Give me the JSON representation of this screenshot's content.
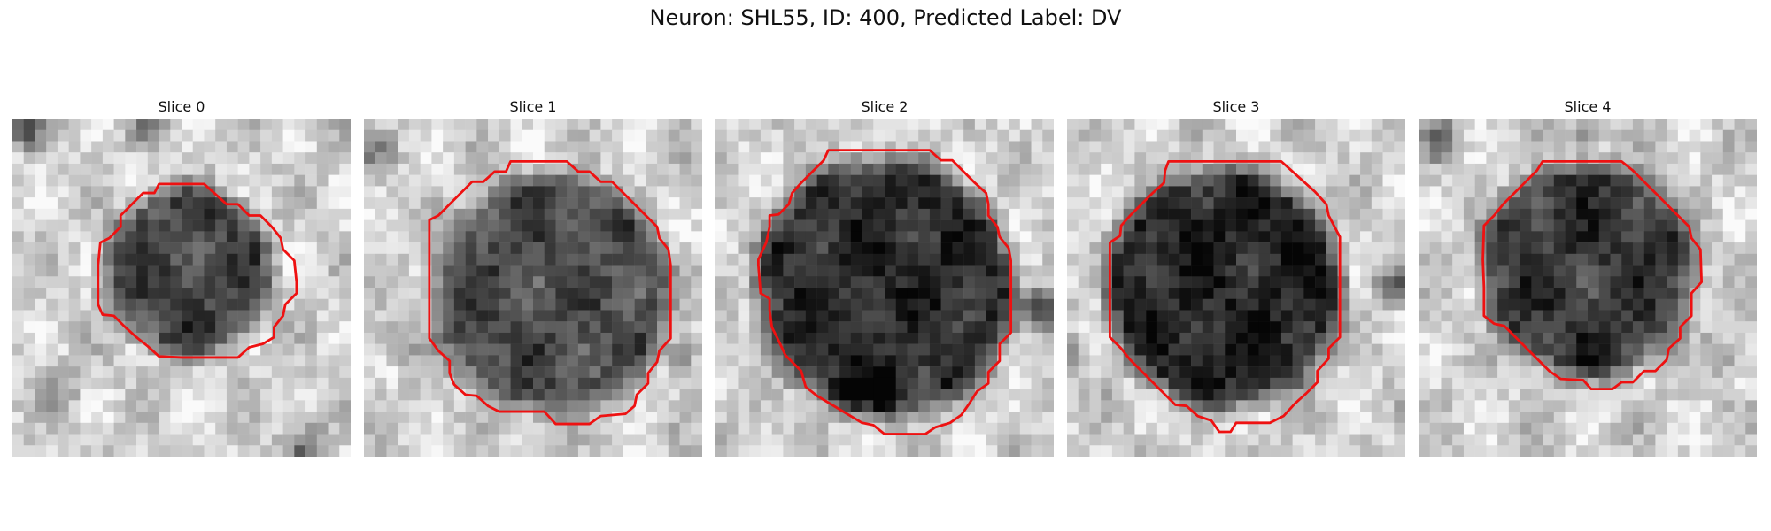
{
  "figure": {
    "title": "Neuron: SHL55, ID: 400, Predicted Label: DV"
  },
  "panels": [
    {
      "title": "Slice 0",
      "image": "grayscale-microscopy-slice",
      "outline": "red-roi-contour"
    },
    {
      "title": "Slice 1",
      "image": "grayscale-microscopy-slice",
      "outline": "red-roi-contour"
    },
    {
      "title": "Slice 2",
      "image": "grayscale-microscopy-slice",
      "outline": "red-roi-contour"
    },
    {
      "title": "Slice 3",
      "image": "grayscale-microscopy-slice",
      "outline": "red-roi-contour"
    },
    {
      "title": "Slice 4",
      "image": "grayscale-microscopy-slice",
      "outline": "red-roi-contour"
    }
  ],
  "colors": {
    "outline": "#ee1111",
    "background": "#ffffff"
  }
}
